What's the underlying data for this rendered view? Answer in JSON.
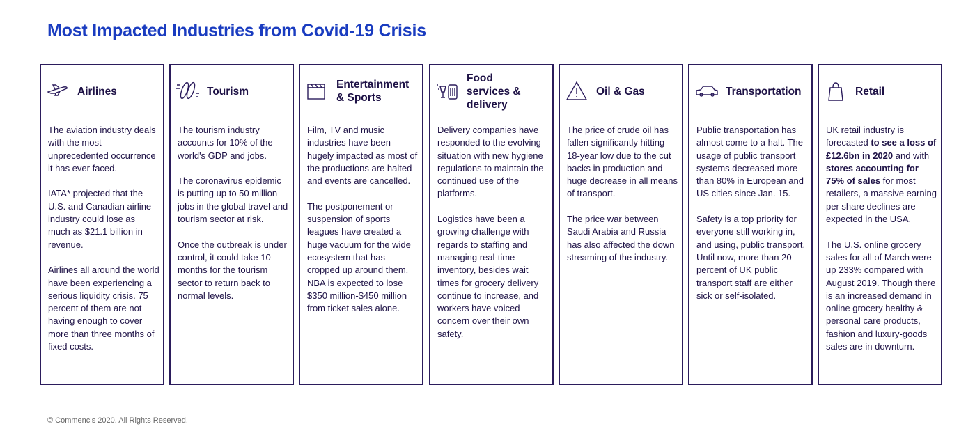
{
  "header": {
    "title": "Most Impacted Industries from Covid-19 Crisis"
  },
  "cards": [
    {
      "title": "Airlines",
      "paragraphs": [
        [
          "The aviation industry deals with the most unprecedented occurrence it has ever faced."
        ],
        [
          "IATA* projected that the U.S. and Canadian airline industry could lose as much as $21.1 billion in revenue."
        ],
        [
          "Airlines all around the world have been experiencing a serious liquidity crisis. 75 percent of them are not having enough to cover more than three months of fixed costs."
        ]
      ]
    },
    {
      "title": "Tourism",
      "paragraphs": [
        [
          "The tourism industry accounts for 10% of the world's GDP and jobs."
        ],
        [
          "The coronavirus epidemic is putting up to 50 million jobs in the global travel and tourism sector at risk."
        ],
        [
          "Once the outbreak is under control, it could take 10 months for the tourism sector to return back to normal levels."
        ]
      ]
    },
    {
      "title": "Entertainment & Sports",
      "paragraphs": [
        [
          "Film, TV and music industries have been hugely impacted as most of the productions are halted and events are cancelled."
        ],
        [
          "The postponement or suspension of sports leagues have created a huge vacuum for the wide ecosystem that has cropped up around them. NBA is expected to lose $350 million-$450 million from ticket sales alone."
        ]
      ]
    },
    {
      "title": "Food services & delivery",
      "paragraphs": [
        [
          "Delivery companies have responded to the evolving situation with new hygiene regulations to maintain the continued use of the platforms."
        ],
        [
          "Logistics have been a growing challenge with regards to staffing and managing real-time inventory, besides wait times for grocery delivery continue to increase, and workers have voiced concern over their own safety."
        ]
      ]
    },
    {
      "title": "Oil & Gas",
      "paragraphs": [
        [
          "The price of crude oil has fallen significantly hitting 18-year low due to the cut backs in production and huge decrease in all means of transport."
        ],
        [
          "The price war between Saudi Arabia and Russia has also affected the down streaming of the industry."
        ]
      ]
    },
    {
      "title": "Transportation",
      "paragraphs": [
        [
          "Public transportation has almost come to a halt. The usage of public transport systems decreased more than 80% in European and US cities since Jan. 15."
        ],
        [
          "Safety is a top priority for everyone still working in, and using, public transport. Until now, more than 20 percent of UK public transport staff are either sick or self-isolated."
        ]
      ]
    },
    {
      "title": "Retail",
      "paragraphs": [
        [
          "UK retail industry is forecasted ",
          {
            "text": "to see a loss of £12.6bn in 2020",
            "bold": true
          },
          " and with ",
          {
            "text": "stores accounting for 75% of sales",
            "bold": true
          },
          " for most retailers, a massive earning per share declines are expected in the USA."
        ],
        [
          "The U.S. online grocery sales for all of March were up 233% compared with August 2019. Though there is an increased demand in online grocery healthy & personal care products, fashion and luxury-goods sales are in downturn."
        ]
      ]
    }
  ],
  "footer": {
    "text": "© Commencis 2020. All Rights Reserved."
  }
}
